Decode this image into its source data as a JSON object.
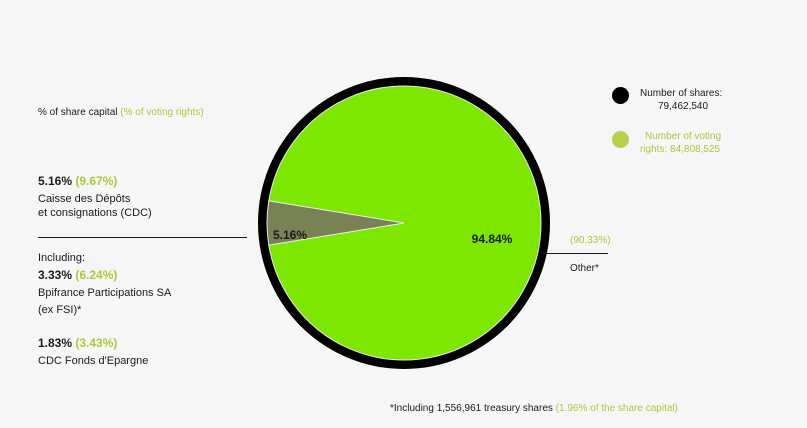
{
  "chart_data": {
    "type": "pie",
    "slices": [
      {
        "label": "Other*",
        "share_capital_pct": 94.84,
        "voting_rights_pct": 90.33,
        "color": "#7de700"
      },
      {
        "label": "Caisse des Dépôts et consignations (CDC)",
        "share_capital_pct": 5.16,
        "voting_rights_pct": 9.67,
        "color": "#788255"
      }
    ],
    "slice_labels": [
      "94.84%",
      "5.16%"
    ],
    "border_color": "#000000",
    "legend": [
      {
        "name": "Number of shares: 79,462,540",
        "lines": [
          "Number of shares:",
          "79,462,540"
        ],
        "color": "#000000"
      },
      {
        "name": "Number of voting rights: 84,808,525",
        "lines": [
          "Number of voting",
          "rights: 84,808,525"
        ],
        "color": "#b7d24a"
      }
    ]
  },
  "header": {
    "main": "% of share capital",
    "paren": "(% of voting rights)"
  },
  "left": {
    "cdc_pct": "5.16%",
    "cdc_vote": "(9.67%)",
    "cdc_line1": "Caisse des Dépôts",
    "cdc_line2": "et consignations (CDC)",
    "including": "Including:",
    "bpi_pct": "3.33%",
    "bpi_vote": "(6.24%)",
    "bpi_line1": "Bpifrance Participations SA",
    "bpi_line2": "(ex FSI)*",
    "fonds_pct": "1.83%",
    "fonds_vote": "(3.43%)",
    "fonds_line1": "CDC Fonds d'Epargne"
  },
  "right": {
    "other_vote": "(90.33%)",
    "other_label": "Other*"
  },
  "footnote": {
    "main": "*Including 1,556,961 treasury shares",
    "paren": "(1.96% of the share capital)"
  }
}
